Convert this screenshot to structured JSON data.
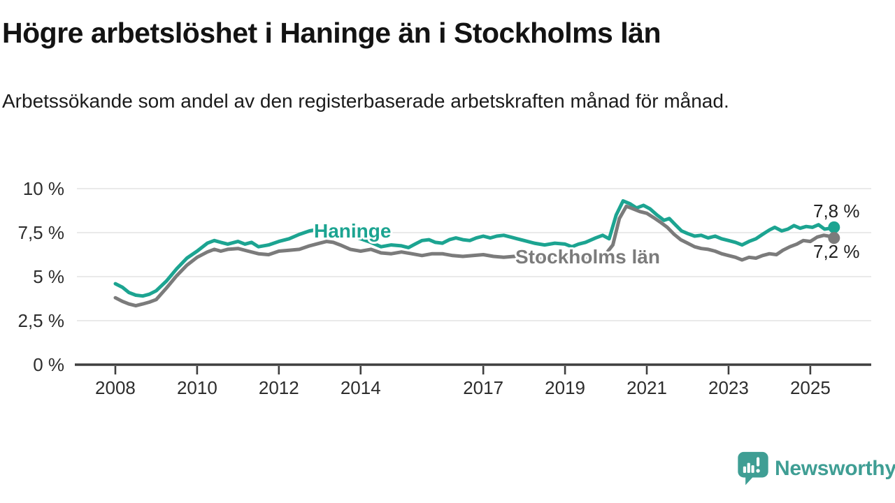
{
  "chart_data": {
    "type": "line",
    "title": "Högre arbetslöshet i Haninge än i Stockholms län",
    "subtitle": "Arbetssökande som andel av den registerbaserade arbetskraften månad för månad.",
    "unit": "%",
    "grid": true,
    "grid_color": "#e3e3e3",
    "axis_color": "#3f3f3f",
    "xlim": [
      2007.06,
      2026.49
    ],
    "ylim": [
      0,
      10
    ],
    "x_ticks": [
      "2008",
      "2010",
      "2012",
      "2014",
      "2017",
      "2019",
      "2021",
      "2023",
      "2025"
    ],
    "y_ticks": [
      {
        "value": 0,
        "label": "0 %"
      },
      {
        "value": 2.5,
        "label": "2,5 %"
      },
      {
        "value": 5,
        "label": "5 %"
      },
      {
        "value": 7.5,
        "label": "7,5 %"
      },
      {
        "value": 10,
        "label": "10 %"
      }
    ],
    "series": [
      {
        "name": "Haninge",
        "color": "#1ca491",
        "end_label": "7,8 %",
        "end_value": 7.8,
        "points": [
          [
            2008,
            4.6
          ],
          [
            2008.17,
            4.4
          ],
          [
            2008.33,
            4.1
          ],
          [
            2008.5,
            3.95
          ],
          [
            2008.67,
            3.9
          ],
          [
            2008.83,
            4.0
          ],
          [
            2009,
            4.2
          ],
          [
            2009.25,
            4.75
          ],
          [
            2009.5,
            5.45
          ],
          [
            2009.75,
            6.05
          ],
          [
            2010,
            6.45
          ],
          [
            2010.25,
            6.9
          ],
          [
            2010.42,
            7.05
          ],
          [
            2010.58,
            6.95
          ],
          [
            2010.75,
            6.85
          ],
          [
            2011,
            7.0
          ],
          [
            2011.17,
            6.85
          ],
          [
            2011.33,
            6.95
          ],
          [
            2011.5,
            6.7
          ],
          [
            2011.75,
            6.8
          ],
          [
            2012,
            7.0
          ],
          [
            2012.25,
            7.15
          ],
          [
            2012.5,
            7.4
          ],
          [
            2012.75,
            7.6
          ],
          [
            2013,
            7.7
          ],
          [
            2013.25,
            7.65
          ],
          [
            2013.5,
            7.55
          ],
          [
            2013.75,
            7.35
          ],
          [
            2014,
            7.15
          ],
          [
            2014.25,
            6.95
          ],
          [
            2014.5,
            6.7
          ],
          [
            2014.75,
            6.8
          ],
          [
            2015,
            6.75
          ],
          [
            2015.17,
            6.65
          ],
          [
            2015.33,
            6.85
          ],
          [
            2015.5,
            7.05
          ],
          [
            2015.67,
            7.1
          ],
          [
            2015.83,
            6.95
          ],
          [
            2016,
            6.9
          ],
          [
            2016.17,
            7.1
          ],
          [
            2016.33,
            7.2
          ],
          [
            2016.5,
            7.1
          ],
          [
            2016.67,
            7.05
          ],
          [
            2016.83,
            7.2
          ],
          [
            2017,
            7.3
          ],
          [
            2017.17,
            7.2
          ],
          [
            2017.33,
            7.3
          ],
          [
            2017.5,
            7.35
          ],
          [
            2017.67,
            7.25
          ],
          [
            2017.83,
            7.15
          ],
          [
            2018,
            7.05
          ],
          [
            2018.25,
            6.9
          ],
          [
            2018.5,
            6.8
          ],
          [
            2018.75,
            6.9
          ],
          [
            2019,
            6.85
          ],
          [
            2019.17,
            6.7
          ],
          [
            2019.33,
            6.85
          ],
          [
            2019.5,
            6.95
          ],
          [
            2019.75,
            7.2
          ],
          [
            2019.92,
            7.35
          ],
          [
            2020.08,
            7.15
          ],
          [
            2020.25,
            8.5
          ],
          [
            2020.42,
            9.3
          ],
          [
            2020.58,
            9.15
          ],
          [
            2020.75,
            8.9
          ],
          [
            2020.92,
            9.05
          ],
          [
            2021.08,
            8.85
          ],
          [
            2021.25,
            8.5
          ],
          [
            2021.42,
            8.2
          ],
          [
            2021.55,
            8.3
          ],
          [
            2021.7,
            7.95
          ],
          [
            2021.85,
            7.6
          ],
          [
            2022,
            7.45
          ],
          [
            2022.17,
            7.3
          ],
          [
            2022.33,
            7.35
          ],
          [
            2022.5,
            7.2
          ],
          [
            2022.67,
            7.3
          ],
          [
            2022.83,
            7.15
          ],
          [
            2023,
            7.05
          ],
          [
            2023.17,
            6.95
          ],
          [
            2023.33,
            6.8
          ],
          [
            2023.5,
            7.0
          ],
          [
            2023.67,
            7.15
          ],
          [
            2023.83,
            7.4
          ],
          [
            2024,
            7.65
          ],
          [
            2024.13,
            7.8
          ],
          [
            2024.3,
            7.6
          ],
          [
            2024.45,
            7.7
          ],
          [
            2024.6,
            7.9
          ],
          [
            2024.75,
            7.75
          ],
          [
            2024.9,
            7.85
          ],
          [
            2025.05,
            7.8
          ],
          [
            2025.2,
            7.95
          ],
          [
            2025.35,
            7.7
          ],
          [
            2025.5,
            7.75
          ],
          [
            2025.58,
            7.8
          ]
        ]
      },
      {
        "name": "Stockholms län",
        "color": "#7b7b7b",
        "end_label": "7,2 %",
        "end_value": 7.2,
        "points": [
          [
            2008,
            3.8
          ],
          [
            2008.17,
            3.6
          ],
          [
            2008.33,
            3.45
          ],
          [
            2008.5,
            3.35
          ],
          [
            2008.67,
            3.45
          ],
          [
            2008.83,
            3.55
          ],
          [
            2009,
            3.7
          ],
          [
            2009.25,
            4.35
          ],
          [
            2009.5,
            5.05
          ],
          [
            2009.75,
            5.65
          ],
          [
            2010,
            6.1
          ],
          [
            2010.25,
            6.4
          ],
          [
            2010.42,
            6.55
          ],
          [
            2010.58,
            6.45
          ],
          [
            2010.75,
            6.55
          ],
          [
            2011,
            6.6
          ],
          [
            2011.25,
            6.45
          ],
          [
            2011.5,
            6.3
          ],
          [
            2011.75,
            6.25
          ],
          [
            2012,
            6.45
          ],
          [
            2012.25,
            6.5
          ],
          [
            2012.5,
            6.55
          ],
          [
            2012.75,
            6.75
          ],
          [
            2013,
            6.9
          ],
          [
            2013.17,
            7.0
          ],
          [
            2013.33,
            6.95
          ],
          [
            2013.5,
            6.8
          ],
          [
            2013.75,
            6.55
          ],
          [
            2014,
            6.45
          ],
          [
            2014.25,
            6.55
          ],
          [
            2014.5,
            6.35
          ],
          [
            2014.75,
            6.3
          ],
          [
            2015,
            6.4
          ],
          [
            2015.25,
            6.3
          ],
          [
            2015.5,
            6.2
          ],
          [
            2015.75,
            6.3
          ],
          [
            2016,
            6.3
          ],
          [
            2016.25,
            6.2
          ],
          [
            2016.5,
            6.15
          ],
          [
            2016.75,
            6.2
          ],
          [
            2017,
            6.25
          ],
          [
            2017.25,
            6.15
          ],
          [
            2017.5,
            6.1
          ],
          [
            2017.75,
            6.15
          ],
          [
            2018,
            6.1
          ],
          [
            2018.25,
            6.0
          ],
          [
            2018.5,
            6.0
          ],
          [
            2018.75,
            6.05
          ],
          [
            2019,
            6.0
          ],
          [
            2019.25,
            6.0
          ],
          [
            2019.5,
            6.1
          ],
          [
            2019.75,
            6.15
          ],
          [
            2020,
            6.3
          ],
          [
            2020.17,
            6.8
          ],
          [
            2020.33,
            8.3
          ],
          [
            2020.5,
            9.0
          ],
          [
            2020.67,
            8.85
          ],
          [
            2020.83,
            8.7
          ],
          [
            2021,
            8.6
          ],
          [
            2021.17,
            8.35
          ],
          [
            2021.33,
            8.1
          ],
          [
            2021.5,
            7.8
          ],
          [
            2021.67,
            7.4
          ],
          [
            2021.83,
            7.1
          ],
          [
            2022,
            6.9
          ],
          [
            2022.17,
            6.7
          ],
          [
            2022.33,
            6.6
          ],
          [
            2022.5,
            6.55
          ],
          [
            2022.67,
            6.45
          ],
          [
            2022.83,
            6.3
          ],
          [
            2023,
            6.2
          ],
          [
            2023.17,
            6.1
          ],
          [
            2023.33,
            5.95
          ],
          [
            2023.5,
            6.1
          ],
          [
            2023.67,
            6.05
          ],
          [
            2023.83,
            6.2
          ],
          [
            2024,
            6.3
          ],
          [
            2024.17,
            6.25
          ],
          [
            2024.33,
            6.5
          ],
          [
            2024.5,
            6.7
          ],
          [
            2024.67,
            6.85
          ],
          [
            2024.83,
            7.05
          ],
          [
            2025,
            7.0
          ],
          [
            2025.17,
            7.25
          ],
          [
            2025.33,
            7.35
          ],
          [
            2025.45,
            7.3
          ],
          [
            2025.58,
            7.2
          ]
        ]
      }
    ]
  },
  "footer": {
    "brand": "Newsworthy",
    "brand_color": "#3f9e94"
  }
}
